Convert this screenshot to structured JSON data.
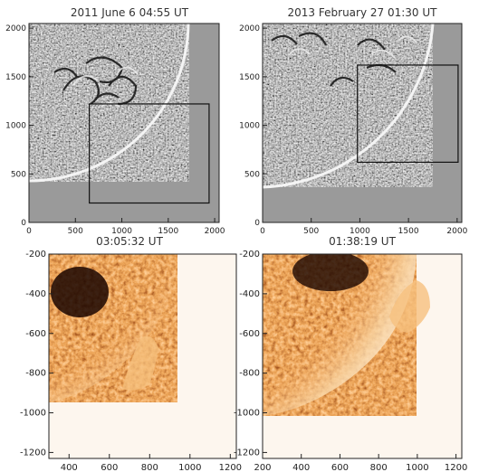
{
  "figure": {
    "panels": [
      {
        "id": "a",
        "title": "2011 June 6 04:55 UT",
        "x_ticks": [
          "0",
          "500",
          "1000",
          "1500",
          "2000"
        ],
        "y_ticks": [
          "0",
          "500",
          "1000",
          "1500",
          "2000"
        ],
        "x_range": [
          0,
          2048
        ],
        "y_range": [
          0,
          2048
        ],
        "box": {
          "x": [
            650,
            1940
          ],
          "y": [
            200,
            1220
          ]
        },
        "limb": {
          "cx": 0,
          "cy": 1950,
          "r": 1550
        }
      },
      {
        "id": "b",
        "title": "2013 February 27 01:30 UT",
        "x_ticks": [
          "0",
          "500",
          "1000",
          "1500",
          "2000"
        ],
        "y_ticks": [
          "0",
          "500",
          "1000",
          "1500",
          "2000"
        ],
        "x_range": [
          0,
          2048
        ],
        "y_range": [
          0,
          2048
        ],
        "box": {
          "x": [
            975,
            2010
          ],
          "y": [
            620,
            1620
          ]
        },
        "limb": {
          "cx": 400,
          "cy": 2200,
          "r": 1700
        }
      },
      {
        "id": "c",
        "title": "03:05:32 UT",
        "x_ticks": [
          "400",
          "600",
          "800",
          "1000",
          "1200"
        ],
        "y_ticks": [
          "-200",
          "-400",
          "-600",
          "-800",
          "-1000",
          "-1200"
        ],
        "x_range": [
          300,
          1230
        ],
        "y_range": [
          -1230,
          -200
        ]
      },
      {
        "id": "d",
        "title": "01:38:19 UT",
        "x_ticks": [
          "200",
          "400",
          "600",
          "800",
          "1000",
          "1200"
        ],
        "y_ticks": [
          "-200",
          "-400",
          "-600",
          "-800",
          "-1000",
          "-1200"
        ],
        "x_range": [
          200,
          1230
        ],
        "y_range": [
          -1230,
          -200
        ]
      }
    ],
    "colors": {
      "limb_gray": "#9a9a9a",
      "limb_rim": "#f4f4f4",
      "hot_dark": "#1a0500",
      "hot_mid": "#c0501a",
      "hot_light": "#f6c07e",
      "corona_bg": "#fdf6ee"
    }
  }
}
